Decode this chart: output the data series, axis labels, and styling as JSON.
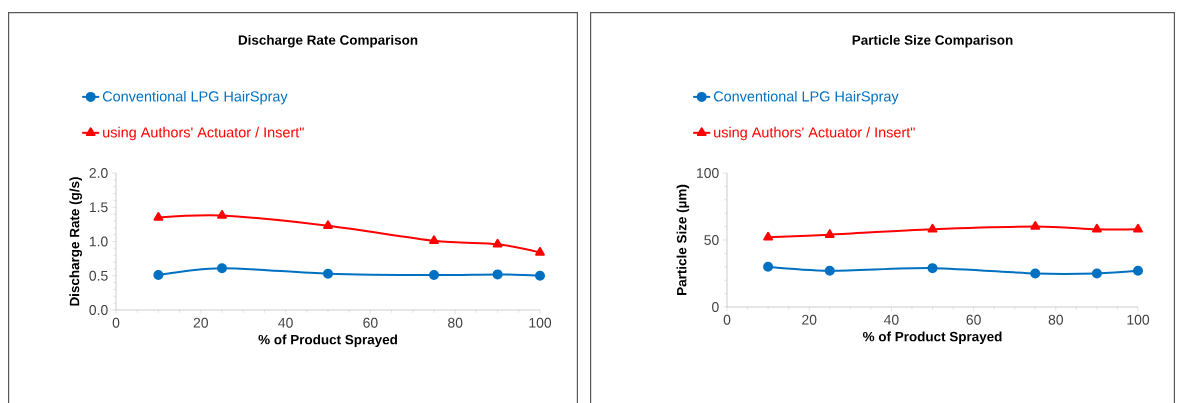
{
  "chart_data": [
    {
      "type": "line",
      "title": "Discharge Rate Comparison",
      "xlabel": "% of Product Sprayed",
      "ylabel": "Discharge Rate (g/s)",
      "x": [
        10,
        25,
        50,
        75,
        90,
        100
      ],
      "series": [
        {
          "name": "Conventional LPG HairSpray",
          "color": "#0070c0",
          "marker": "circle",
          "values": [
            0.51,
            0.61,
            0.53,
            0.51,
            0.52,
            0.5
          ]
        },
        {
          "name": "using Authors' Actuator / Insert\"",
          "color": "#ff0000",
          "marker": "triangle",
          "values": [
            1.35,
            1.38,
            1.23,
            1.01,
            0.96,
            0.84
          ]
        }
      ],
      "xlim": [
        0,
        100
      ],
      "xticks": [
        0,
        20,
        40,
        60,
        80,
        100
      ],
      "ylim": [
        0,
        2
      ],
      "yticks": [
        {
          "value": 0,
          "label": "0.0"
        },
        0.5,
        {
          "value": 1,
          "label": "1.0"
        },
        1.5,
        {
          "value": 2,
          "label": "2.0"
        }
      ],
      "grid": false,
      "legend": "top left",
      "line_style": "solid"
    },
    {
      "type": "line",
      "title": "Particle Size Comparison",
      "xlabel": "% of Product Sprayed",
      "ylabel": "Particle Size (µm)",
      "x": [
        10,
        25,
        50,
        75,
        90,
        100
      ],
      "series": [
        {
          "name": "Conventional LPG HairSpray",
          "color": "#0070c0",
          "marker": "circle",
          "values": [
            30,
            27,
            29,
            25,
            25,
            27
          ]
        },
        {
          "name": "using Authors' Actuator / Insert\"",
          "color": "#ff0000",
          "marker": "triangle",
          "values": [
            52,
            54,
            58,
            60,
            58,
            58
          ]
        }
      ],
      "xlim": [
        0,
        100
      ],
      "xticks": [
        0,
        20,
        40,
        60,
        80,
        100
      ],
      "ylim": [
        0,
        100
      ],
      "yticks": [
        0,
        50,
        100
      ],
      "grid": false,
      "legend": "top left",
      "line_style": "solid"
    }
  ]
}
